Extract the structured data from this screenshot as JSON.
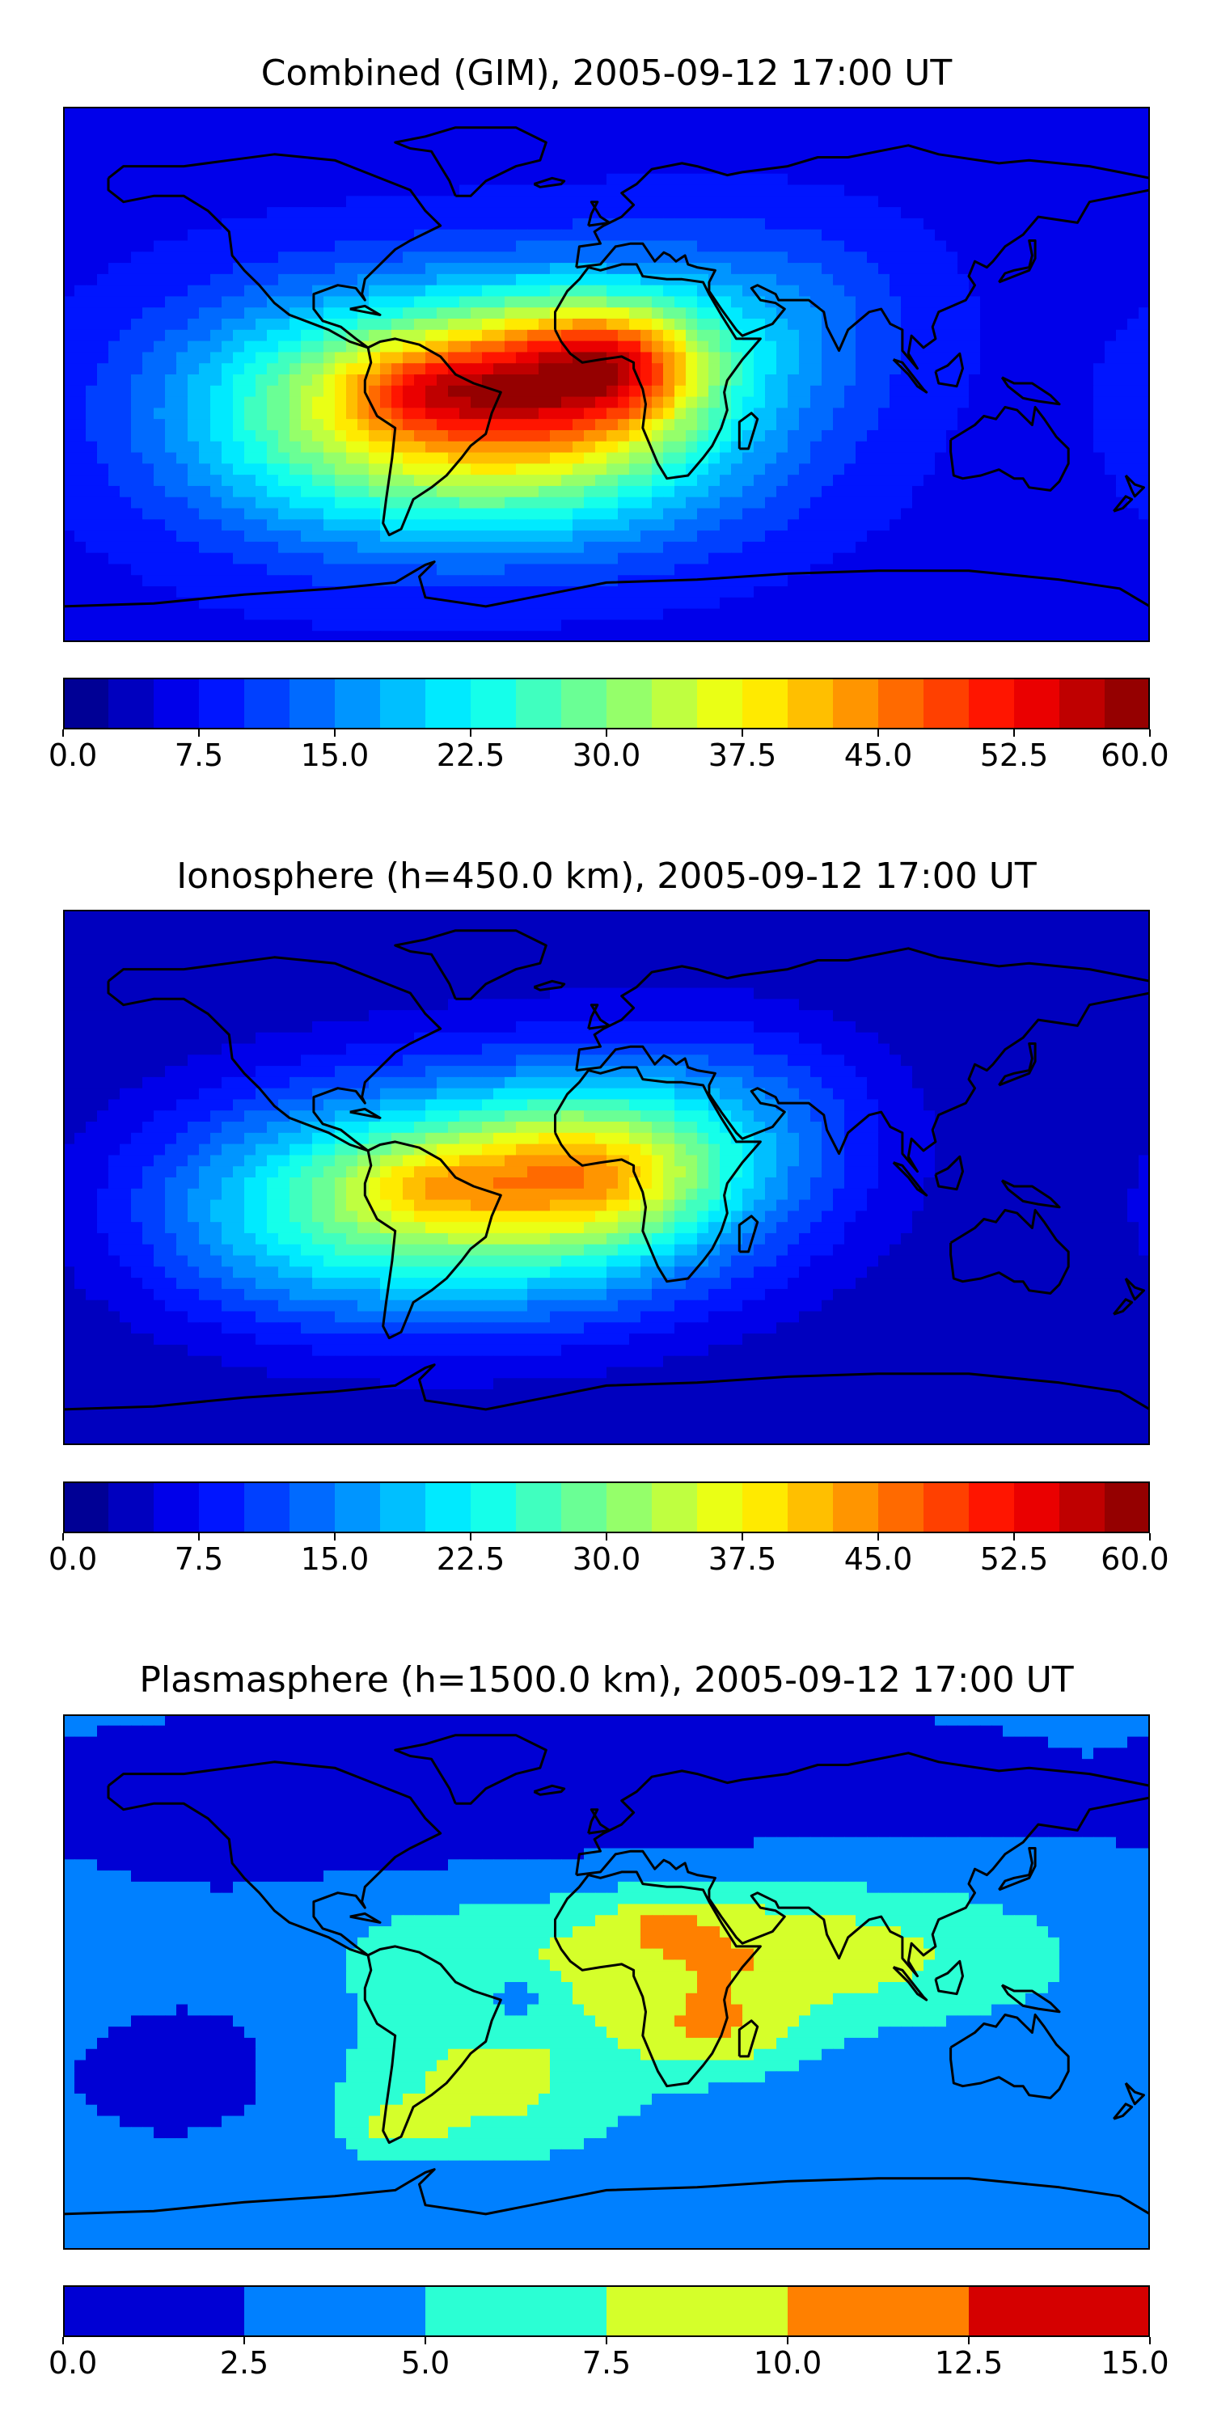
{
  "chart_data": [
    {
      "type": "heatmap",
      "title": "Combined (GIM), 2005-09-12 17:00 UT",
      "colormap": "jet",
      "color_range": [
        0,
        60
      ],
      "level_step": 2.5,
      "colorbar_ticks": [
        "0.0",
        "7.5",
        "15.0",
        "22.5",
        "30.0",
        "37.5",
        "45.0",
        "52.5",
        "60.0"
      ],
      "background_value": 6.5,
      "blobs": [
        {
          "lon": -50,
          "lat": -10,
          "sx": 55,
          "sy": 26,
          "amp": 30
        },
        {
          "lon": -12,
          "lat": 0,
          "sx": 30,
          "sy": 18,
          "amp": 18
        },
        {
          "lon": 5,
          "lat": 5,
          "sx": 18,
          "sy": 12,
          "amp": 12
        },
        {
          "lon": -60,
          "lat": -5,
          "sx": 20,
          "sy": 10,
          "amp": 10
        },
        {
          "lon": 20,
          "lat": 5,
          "sx": 45,
          "sy": 28,
          "amp": 7
        },
        {
          "lon": -100,
          "lat": -20,
          "sx": 40,
          "sy": 30,
          "amp": 5
        },
        {
          "lon": 60,
          "lat": 25,
          "sx": 30,
          "sy": 20,
          "amp": 4
        },
        {
          "lon": -20,
          "lat": -40,
          "sx": 50,
          "sy": 20,
          "amp": 6
        }
      ],
      "grid": false,
      "legend": "colorbar-bottom"
    },
    {
      "type": "heatmap",
      "title": "Ionosphere  (h=450.0 km), 2005-09-12 17:00 UT",
      "colormap": "jet",
      "color_range": [
        0,
        60
      ],
      "level_step": 2.5,
      "colorbar_ticks": [
        "0.0",
        "7.5",
        "15.0",
        "22.5",
        "30.0",
        "37.5",
        "45.0",
        "52.5",
        "60.0"
      ],
      "background_value": 2.5,
      "blobs": [
        {
          "lon": -50,
          "lat": -8,
          "sx": 60,
          "sy": 28,
          "amp": 26
        },
        {
          "lon": -5,
          "lat": 2,
          "sx": 30,
          "sy": 16,
          "amp": 16
        },
        {
          "lon": -60,
          "lat": -3,
          "sx": 20,
          "sy": 10,
          "amp": 8
        },
        {
          "lon": 15,
          "lat": 10,
          "sx": 50,
          "sy": 30,
          "amp": 8
        },
        {
          "lon": -110,
          "lat": -15,
          "sx": 35,
          "sy": 25,
          "amp": 5
        },
        {
          "lon": 50,
          "lat": 25,
          "sx": 30,
          "sy": 20,
          "amp": 4
        }
      ],
      "grid": false,
      "legend": "colorbar-bottom"
    },
    {
      "type": "heatmap",
      "title": "Plasmasphere (h=1500.0 km), 2005-09-12 17:00 UT",
      "colormap": "jet",
      "color_range": [
        0,
        15
      ],
      "level_step": 2.5,
      "colorbar_ticks": [
        "0.0",
        "2.5",
        "5.0",
        "7.5",
        "10.0",
        "12.5",
        "15.0"
      ],
      "background_value": 3.2,
      "blobs": [
        {
          "lon": 30,
          "lat": 10,
          "sx": 45,
          "sy": 18,
          "amp": 6.5
        },
        {
          "lon": 35,
          "lat": -18,
          "sx": 20,
          "sy": 10,
          "amp": 4.5
        },
        {
          "lon": 20,
          "lat": 20,
          "sx": 10,
          "sy": 5,
          "amp": 3
        },
        {
          "lon": -40,
          "lat": -35,
          "sx": 35,
          "sy": 18,
          "amp": 5
        },
        {
          "lon": -70,
          "lat": -50,
          "sx": 12,
          "sy": 6,
          "amp": 3
        },
        {
          "lon": 110,
          "lat": 10,
          "sx": 40,
          "sy": 18,
          "amp": 3
        },
        {
          "lon": -60,
          "lat": 10,
          "sx": 30,
          "sy": 15,
          "amp": 2.5
        },
        {
          "lon": -140,
          "lat": -30,
          "sx": 25,
          "sy": 15,
          "amp": -2
        },
        {
          "lon": -20,
          "lat": 60,
          "sx": 140,
          "sy": 25,
          "amp": -2
        },
        {
          "lon": -30,
          "lat": -5,
          "sx": 8,
          "sy": 6,
          "amp": -3
        }
      ],
      "grid": false,
      "legend": "colorbar-bottom"
    }
  ],
  "coastline_color": "#000000"
}
